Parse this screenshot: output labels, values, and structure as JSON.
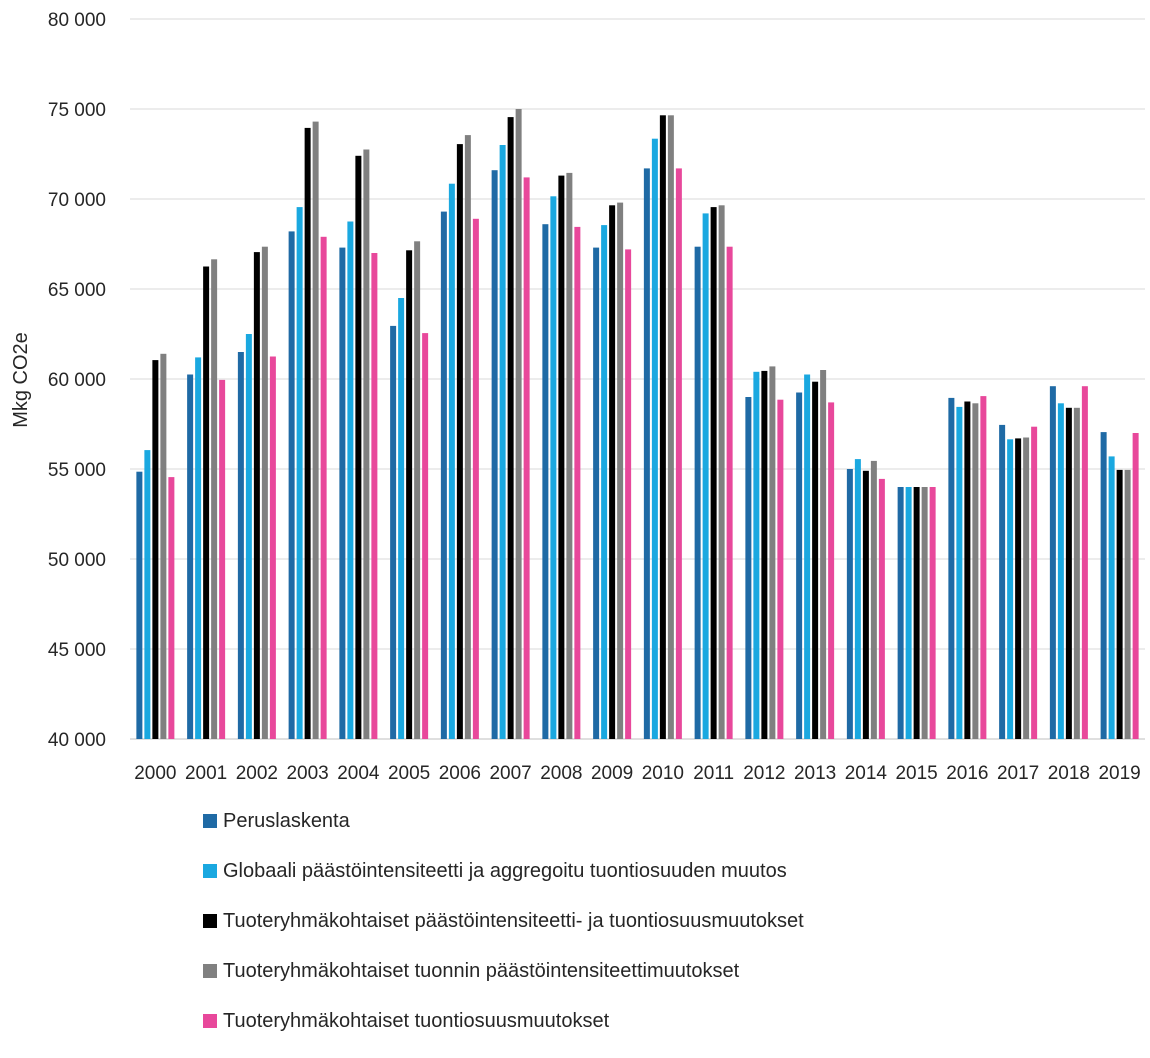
{
  "chart_data": {
    "type": "bar",
    "title": "",
    "xlabel": "",
    "ylabel": "Mkg CO2e",
    "ylim": [
      40000,
      80000
    ],
    "yticks": [
      "40 000",
      "45 000",
      "50 000",
      "55 000",
      "60 000",
      "65 000",
      "70 000",
      "75 000",
      "80 000"
    ],
    "ytick_values": [
      40000,
      45000,
      50000,
      55000,
      60000,
      65000,
      70000,
      75000,
      80000
    ],
    "grid": true,
    "legend_position": "bottom",
    "categories": [
      "2000",
      "2001",
      "2002",
      "2003",
      "2004",
      "2005",
      "2006",
      "2007",
      "2008",
      "2009",
      "2010",
      "2011",
      "2012",
      "2013",
      "2014",
      "2015",
      "2016",
      "2017",
      "2018",
      "2019"
    ],
    "series": [
      {
        "name": "Peruslaskenta",
        "color": "#1f6aa5",
        "values": [
          54850,
          60250,
          61500,
          68200,
          67300,
          62950,
          69300,
          71600,
          68600,
          67300,
          71700,
          67350,
          59000,
          59250,
          55000,
          54000,
          58950,
          57450,
          59600,
          57050
        ]
      },
      {
        "name": "Globaali päästöintensiteetti ja aggregoitu tuontiosuuden muutos",
        "color": "#1aa8e0",
        "values": [
          56050,
          61200,
          62500,
          69550,
          68750,
          64500,
          70850,
          73000,
          70150,
          68550,
          73350,
          69200,
          60400,
          60250,
          55550,
          54000,
          58450,
          56650,
          58650,
          55700
        ]
      },
      {
        "name": "Tuoteryhmäkohtaiset päästöintensiteetti- ja tuontiosuusmuutokset",
        "color": "#000000",
        "values": [
          61050,
          66250,
          67050,
          73950,
          72400,
          67150,
          73050,
          74550,
          71300,
          69650,
          74650,
          69550,
          60450,
          59850,
          54900,
          54000,
          58750,
          56700,
          58400,
          54950
        ]
      },
      {
        "name": "Tuoteryhmäkohtaiset tuonnin päästöintensiteettimuutokset",
        "color": "#808080",
        "values": [
          61400,
          66650,
          67350,
          74300,
          72750,
          67650,
          73550,
          75000,
          71450,
          69800,
          74650,
          69650,
          60700,
          60500,
          55450,
          54000,
          58650,
          56750,
          58400,
          54950
        ]
      },
      {
        "name": "Tuoteryhmäkohtaiset tuontiosuusmuutokset",
        "color": "#e8489b",
        "values": [
          54550,
          59950,
          61250,
          67900,
          67000,
          62550,
          68900,
          71200,
          68450,
          67200,
          71700,
          67350,
          58850,
          58700,
          54450,
          54000,
          59050,
          57350,
          59600,
          57000
        ]
      }
    ]
  }
}
